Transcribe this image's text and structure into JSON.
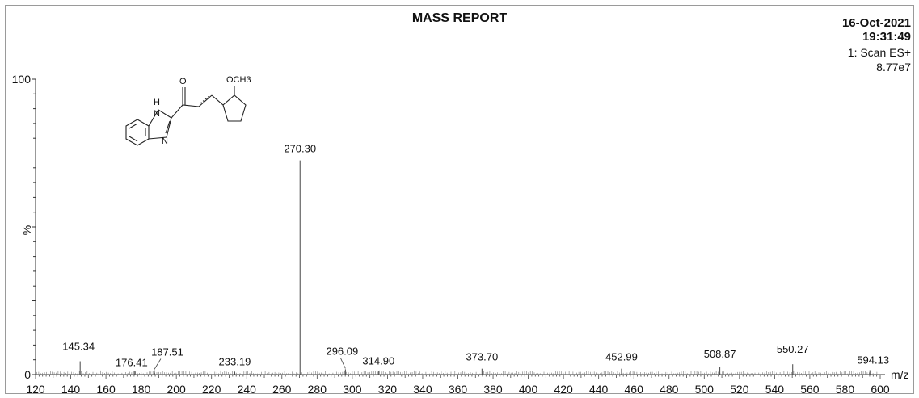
{
  "header": {
    "title": "MASS REPORT",
    "date": "16-Oct-2021",
    "time": "19:31:49",
    "scan": "1: Scan ES+",
    "intensity": "8.77e7"
  },
  "structure_labels": {
    "nh": "H",
    "n1": "N",
    "n2": "N",
    "o": "O",
    "och3": "OCH3"
  },
  "chart_data": {
    "type": "bar",
    "title": "MASS REPORT",
    "xlabel": "m/z",
    "ylabel": "%",
    "xlim": [
      120,
      600
    ],
    "ylim": [
      0,
      100
    ],
    "x_ticks": [
      120,
      140,
      160,
      180,
      200,
      220,
      240,
      260,
      280,
      300,
      320,
      340,
      360,
      380,
      400,
      420,
      440,
      460,
      480,
      500,
      520,
      540,
      560,
      580,
      600
    ],
    "y_ticks": [
      0,
      100
    ],
    "peaks": [
      {
        "mz": 145.34,
        "intensity": 4.5,
        "label": "145.34"
      },
      {
        "mz": 176.41,
        "intensity": 1.2,
        "label": "176.41"
      },
      {
        "mz": 187.51,
        "intensity": 1.5,
        "label": "187.51"
      },
      {
        "mz": 233.19,
        "intensity": 1.0,
        "label": "233.19"
      },
      {
        "mz": 270.3,
        "intensity": 72.5,
        "label": "270.30"
      },
      {
        "mz": 296.09,
        "intensity": 1.8,
        "label": "296.09"
      },
      {
        "mz": 314.9,
        "intensity": 1.2,
        "label": "314.90"
      },
      {
        "mz": 373.7,
        "intensity": 2.0,
        "label": "373.70"
      },
      {
        "mz": 452.99,
        "intensity": 2.0,
        "label": "452.99"
      },
      {
        "mz": 508.87,
        "intensity": 2.5,
        "label": "508.87"
      },
      {
        "mz": 550.27,
        "intensity": 3.5,
        "label": "550.27"
      },
      {
        "mz": 594.13,
        "intensity": 1.5,
        "label": "594.13"
      }
    ]
  }
}
